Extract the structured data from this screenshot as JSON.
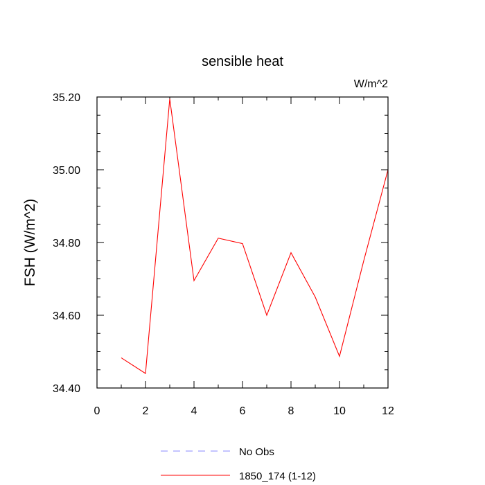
{
  "chart_data": {
    "type": "line",
    "title": "sensible heat",
    "units": "W/m^2",
    "ylabel": "FSH  (W/m^2)",
    "xlabel": "",
    "xlim": [
      0,
      12
    ],
    "ylim": [
      34.4,
      35.2
    ],
    "x_ticks": [
      "0",
      "2",
      "4",
      "6",
      "8",
      "10",
      "12"
    ],
    "y_ticks": [
      "34.40",
      "34.60",
      "34.80",
      "35.00",
      "35.20"
    ],
    "grid": false,
    "series": [
      {
        "name": "1850_174 (1-12)",
        "color": "#ff0000",
        "style": "solid",
        "x": [
          1,
          2,
          3,
          4,
          5,
          6,
          7,
          8,
          9,
          10,
          11,
          12
        ],
        "values": [
          34.483,
          34.44,
          35.195,
          34.695,
          34.812,
          34.797,
          34.6,
          34.772,
          34.65,
          34.487,
          34.75,
          35.0
        ]
      }
    ],
    "legend": {
      "position": "bottom",
      "entries": [
        {
          "label": "No Obs",
          "color": "#8888ff",
          "style": "dashed"
        },
        {
          "label": "1850_174 (1-12)",
          "color": "#ff0000",
          "style": "solid"
        }
      ]
    }
  }
}
